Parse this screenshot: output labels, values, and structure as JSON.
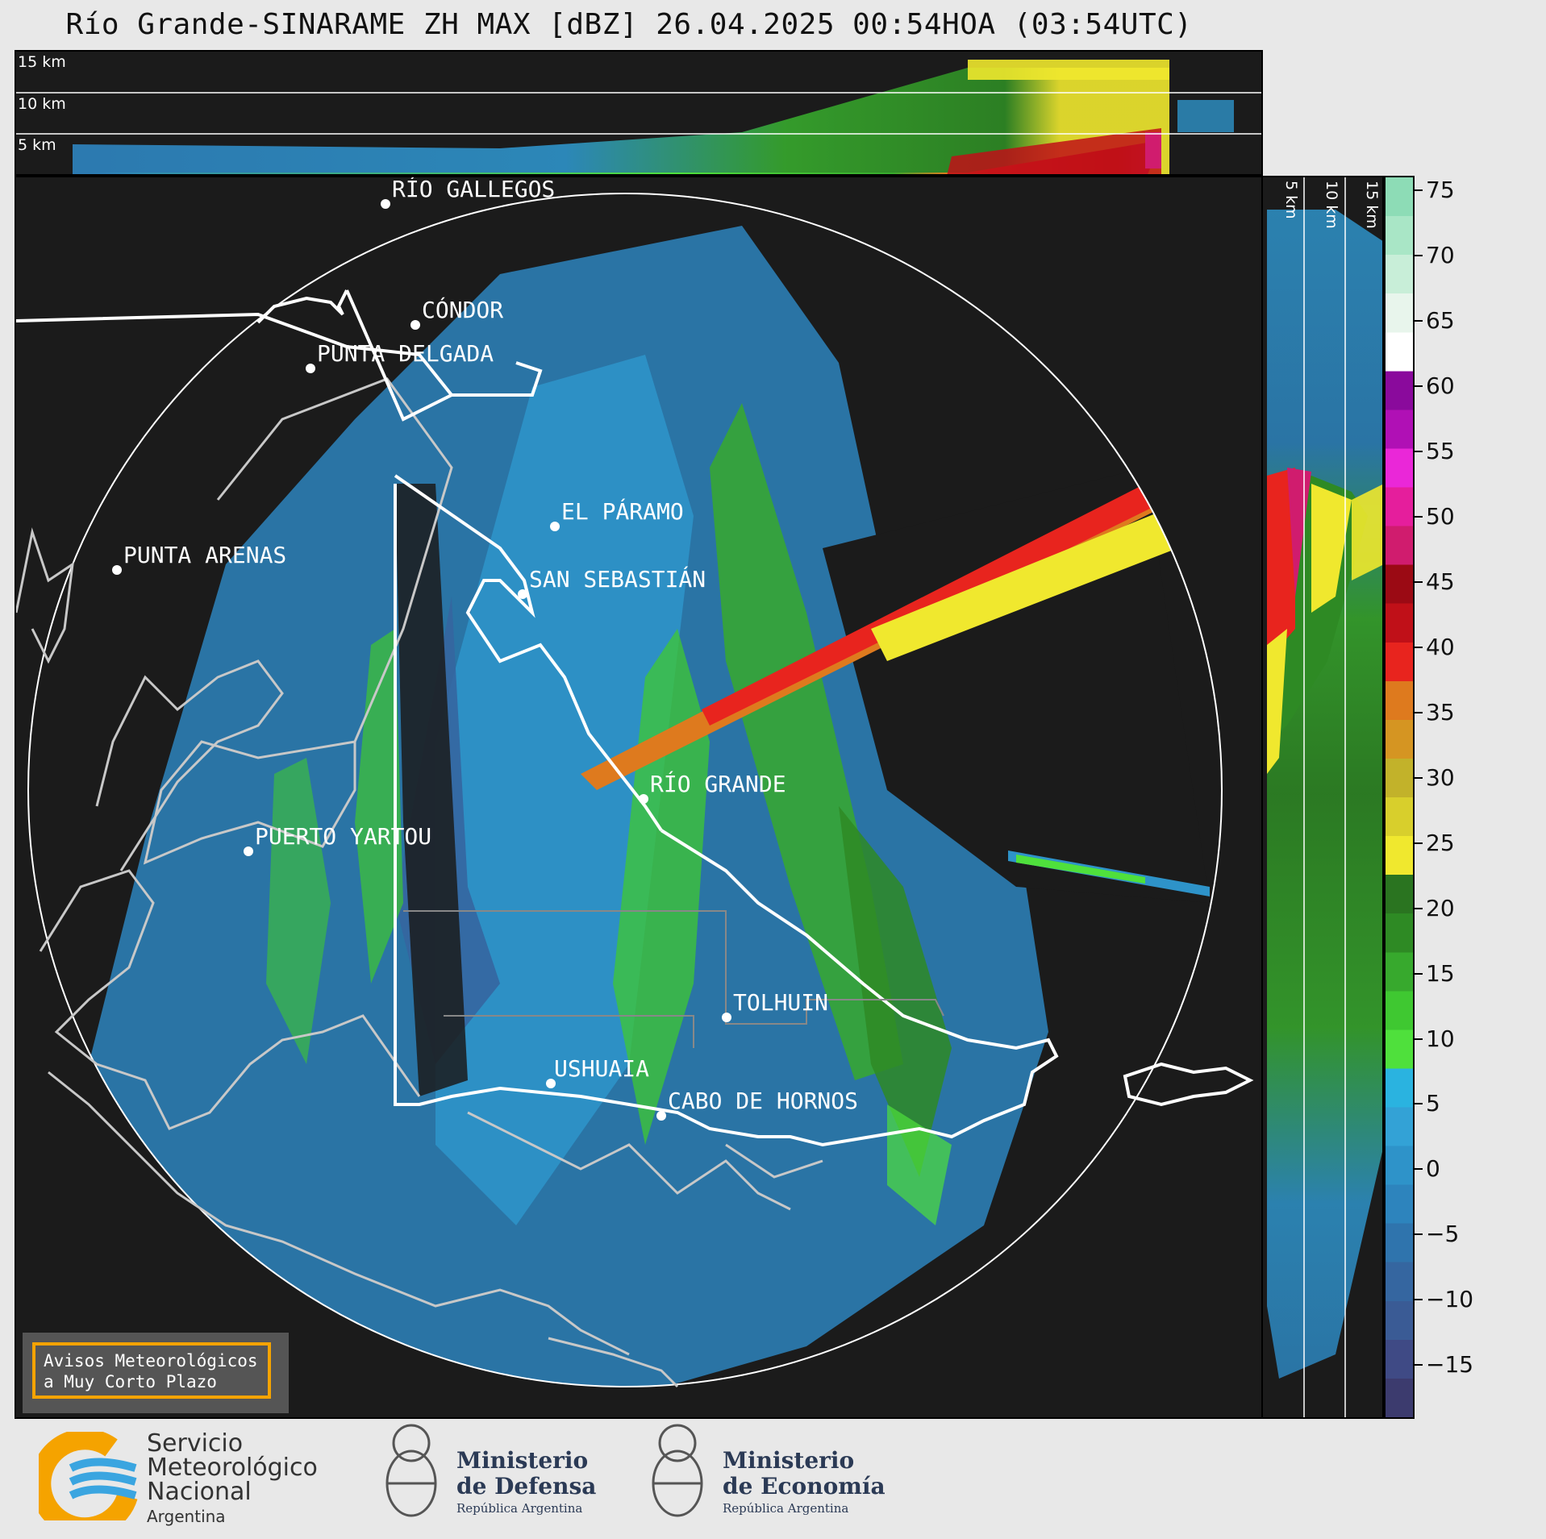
{
  "title": "Río Grande-SINARAME ZH MAX [dBZ] 26.04.2025 00:54HOA (03:54UTC)",
  "top_panel": {
    "height_labels": [
      "15 km",
      "10 km",
      "5 km"
    ]
  },
  "side_panel": {
    "height_labels": [
      "5 km",
      "10 km",
      "15 km"
    ]
  },
  "map": {
    "places": [
      {
        "name": "RÍO GALLEGOS"
      },
      {
        "name": "CÓNDOR"
      },
      {
        "name": "PUNTA DELGADA"
      },
      {
        "name": "PUNTA ARENAS"
      },
      {
        "name": "EL PÁRAMO"
      },
      {
        "name": "SAN SEBASTIÁN"
      },
      {
        "name": "RÍO GRANDE"
      },
      {
        "name": "PUERTO YARTOU"
      },
      {
        "name": "TOLHUIN"
      },
      {
        "name": "USHUAIA"
      },
      {
        "name": "CABO DE HORNOS"
      }
    ]
  },
  "colorbar": {
    "unit": "dBZ",
    "ticks": [
      "75",
      "70",
      "65",
      "60",
      "55",
      "50",
      "45",
      "40",
      "35",
      "30",
      "25",
      "20",
      "15",
      "10",
      "5",
      "0",
      "−5",
      "−10",
      "−15"
    ],
    "range": [
      -19,
      76
    ],
    "colors": [
      "#3c3b6e",
      "#3f4a85",
      "#3a5b95",
      "#3566a0",
      "#2f74ad",
      "#2d84bd",
      "#2e93c9",
      "#33a2d6",
      "#2ab3e0",
      "#4fe03c",
      "#3fc831",
      "#37a92d",
      "#2e8a24",
      "#2a7420",
      "#f0e82e",
      "#d8cf2c",
      "#c2b22a",
      "#d59522",
      "#de7a1e",
      "#e8241e",
      "#c01018",
      "#9b0a14",
      "#d01c6e",
      "#e51e9c",
      "#ea27d8",
      "#b010b5",
      "#8a0a9c",
      "#ffffff",
      "#e8f5ec",
      "#c8eed8",
      "#a9e6c6",
      "#8ddcb6"
    ]
  },
  "avisos": {
    "line1": "Avisos Meteorológicos",
    "line2": "a Muy Corto Plazo"
  },
  "logos": {
    "smn": {
      "line1": "Servicio",
      "line2": "Meteorológico",
      "line3": "Nacional",
      "line4": "Argentina"
    },
    "defensa": {
      "line1": "Ministerio",
      "line2": "de Defensa",
      "line3": "República Argentina"
    },
    "economia": {
      "line1": "Ministerio",
      "line2": "de Economía",
      "line3": "República Argentina"
    }
  }
}
